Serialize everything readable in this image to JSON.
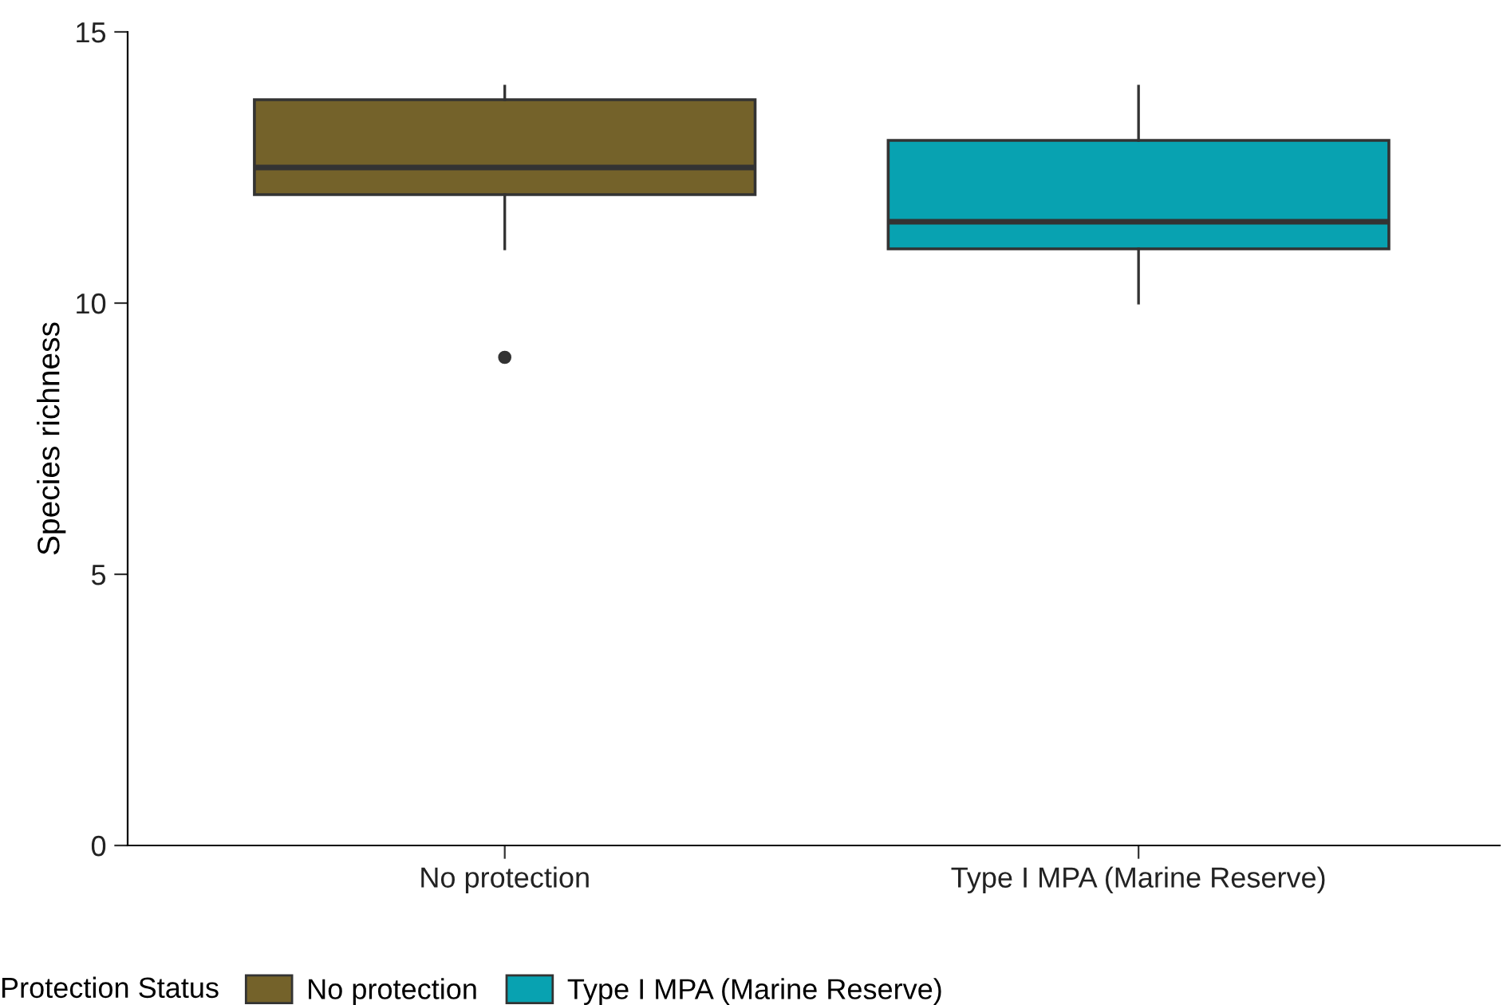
{
  "chart_data": {
    "type": "box",
    "ylabel": "Species richness",
    "legend_title": "Protection Status",
    "categories": [
      "No protection",
      "Type I MPA (Marine Reserve)"
    ],
    "series": [
      {
        "name": "No protection",
        "color": "#74622a",
        "boxes": [
          {
            "low": 11,
            "q1": 12,
            "median": 12.5,
            "q3": 13.75,
            "high": 14,
            "outliers": [
              9
            ]
          },
          null
        ]
      },
      {
        "name": "Type I MPA (Marine Reserve)",
        "color": "#08a2b1",
        "boxes": [
          null,
          {
            "low": 10,
            "q1": 11,
            "median": 11.5,
            "q3": 13,
            "high": 14
          }
        ]
      }
    ],
    "ylim": [
      0,
      15
    ],
    "yticks": [
      0,
      5,
      10,
      15
    ],
    "grid": false,
    "legend": "bottom"
  }
}
